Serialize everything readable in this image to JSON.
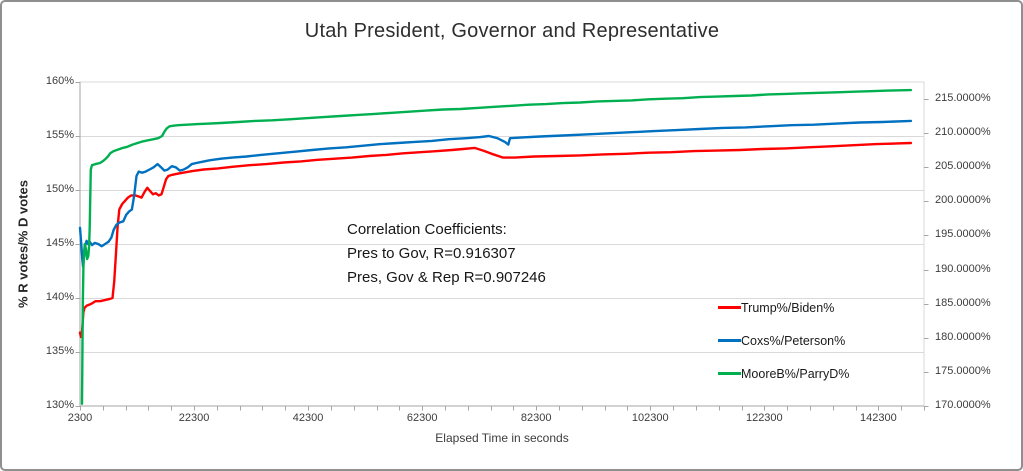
{
  "chart_data": {
    "type": "line",
    "title": "Utah President, Governor and Representative",
    "xlabel": "Elapsed Time in seconds",
    "ylabel_left": "% R votes/% D votes",
    "grid": "horizontal",
    "legend_position": "right-lower",
    "colors": {
      "red_series": "#FF0000",
      "blue_series": "#0070C0",
      "green_series": "#00B050",
      "gridline": "#D9D9D9",
      "axis": "#A6A6A6",
      "frame": "#8f8f8f"
    },
    "x_axis": {
      "min": 2300,
      "max": 150300,
      "minor_step": 4000,
      "major_ticks": [
        2300,
        22300,
        42300,
        62300,
        82300,
        102300,
        122300,
        142300
      ],
      "major_labels": [
        "2300",
        "22300",
        "42300",
        "62300",
        "82300",
        "102300",
        "122300",
        "142300"
      ]
    },
    "y_left": {
      "min": 130,
      "max": 160,
      "step": 5,
      "labels_top_to_bottom": [
        "160%",
        "155%",
        "150%",
        "145%",
        "140%",
        "135%",
        "130%"
      ]
    },
    "y_right": {
      "min": 170,
      "max": 217.5,
      "step": 5,
      "top_label_value": 215,
      "labels_top_to_bottom": [
        "215.0000%",
        "210.0000%",
        "205.0000%",
        "200.0000%",
        "195.0000%",
        "190.0000%",
        "185.0000%",
        "180.0000%",
        "175.0000%",
        "170.0000%"
      ]
    },
    "annotation": {
      "line1": "Correlation  Coefficients:",
      "line2": "Pres to Gov, R=0.916307",
      "line3": "Pres, Gov & Rep R=0.907246"
    },
    "legend": [
      {
        "name": "Trump%/Biden%",
        "color": "#FF0000"
      },
      {
        "name": "Coxs%/Peterson%",
        "color": "#0070C0"
      },
      {
        "name": "MooreB%/ParryD%",
        "color": "#00B050"
      }
    ],
    "series": [
      {
        "name": "Trump%/Biden%",
        "slug": "trump-biden",
        "color": "#FF0000",
        "points": [
          [
            2300,
            136.8
          ],
          [
            2450,
            136.4
          ],
          [
            2600,
            136.5
          ],
          [
            2750,
            137.6
          ],
          [
            2900,
            138.7
          ],
          [
            3100,
            139.1
          ],
          [
            3500,
            139.3
          ],
          [
            4000,
            139.4
          ],
          [
            4400,
            139.5
          ],
          [
            5000,
            139.7
          ],
          [
            5800,
            139.7
          ],
          [
            6600,
            139.8
          ],
          [
            7400,
            139.9
          ],
          [
            8000,
            140.0
          ],
          [
            8300,
            141.5
          ],
          [
            8600,
            144.0
          ],
          [
            8900,
            146.6
          ],
          [
            9200,
            148.2
          ],
          [
            9700,
            148.7
          ],
          [
            10200,
            149.0
          ],
          [
            10700,
            149.3
          ],
          [
            11300,
            149.5
          ],
          [
            12000,
            149.5
          ],
          [
            12600,
            149.4
          ],
          [
            13100,
            149.3
          ],
          [
            13600,
            149.8
          ],
          [
            14100,
            150.2
          ],
          [
            14600,
            149.9
          ],
          [
            15100,
            149.6
          ],
          [
            15600,
            149.7
          ],
          [
            16100,
            149.5
          ],
          [
            16600,
            149.6
          ],
          [
            17000,
            150.3
          ],
          [
            17400,
            151.0
          ],
          [
            17800,
            151.3
          ],
          [
            18400,
            151.4
          ],
          [
            19300,
            151.5
          ],
          [
            20400,
            151.6
          ],
          [
            22000,
            151.75
          ],
          [
            24000,
            151.9
          ],
          [
            26500,
            152.0
          ],
          [
            29000,
            152.15
          ],
          [
            32000,
            152.3
          ],
          [
            35000,
            152.4
          ],
          [
            38000,
            152.55
          ],
          [
            41000,
            152.65
          ],
          [
            44000,
            152.8
          ],
          [
            47000,
            152.9
          ],
          [
            50000,
            153.0
          ],
          [
            53000,
            153.15
          ],
          [
            56000,
            153.25
          ],
          [
            59000,
            153.4
          ],
          [
            62000,
            153.5
          ],
          [
            65000,
            153.6
          ],
          [
            67500,
            153.7
          ],
          [
            69500,
            153.8
          ],
          [
            71500,
            153.9
          ],
          [
            73000,
            153.65
          ],
          [
            74500,
            153.35
          ],
          [
            76500,
            153.0
          ],
          [
            78500,
            153.0
          ],
          [
            82000,
            153.1
          ],
          [
            86000,
            153.15
          ],
          [
            90000,
            153.2
          ],
          [
            94000,
            153.3
          ],
          [
            98000,
            153.35
          ],
          [
            102000,
            153.45
          ],
          [
            106000,
            153.5
          ],
          [
            110000,
            153.6
          ],
          [
            114000,
            153.65
          ],
          [
            118000,
            153.7
          ],
          [
            122000,
            153.8
          ],
          [
            126000,
            153.85
          ],
          [
            130000,
            153.95
          ],
          [
            134000,
            154.05
          ],
          [
            138000,
            154.15
          ],
          [
            142000,
            154.25
          ],
          [
            145000,
            154.3
          ],
          [
            148000,
            154.35
          ]
        ]
      },
      {
        "name": "Coxs%/Peterson%",
        "slug": "coxs-peterson",
        "color": "#0070C0",
        "points": [
          [
            2300,
            146.5
          ],
          [
            2500,
            145.2
          ],
          [
            2700,
            143.6
          ],
          [
            2850,
            142.9
          ],
          [
            3050,
            144.1
          ],
          [
            3250,
            144.9
          ],
          [
            3450,
            145.3
          ],
          [
            3700,
            145.0
          ],
          [
            4000,
            145.2
          ],
          [
            4400,
            144.9
          ],
          [
            4900,
            145.1
          ],
          [
            5500,
            145.0
          ],
          [
            6100,
            144.8
          ],
          [
            6700,
            145.0
          ],
          [
            7300,
            145.2
          ],
          [
            7800,
            145.6
          ],
          [
            8200,
            146.3
          ],
          [
            8700,
            146.8
          ],
          [
            9300,
            147.0
          ],
          [
            9900,
            147.1
          ],
          [
            10400,
            147.7
          ],
          [
            10900,
            148.0
          ],
          [
            11400,
            148.2
          ],
          [
            11800,
            149.5
          ],
          [
            12200,
            151.3
          ],
          [
            12600,
            151.7
          ],
          [
            13200,
            151.6
          ],
          [
            13800,
            151.7
          ],
          [
            14500,
            151.9
          ],
          [
            15200,
            152.1
          ],
          [
            15900,
            152.4
          ],
          [
            16500,
            152.1
          ],
          [
            17100,
            151.8
          ],
          [
            17700,
            151.9
          ],
          [
            18400,
            152.2
          ],
          [
            19100,
            152.1
          ],
          [
            19800,
            151.8
          ],
          [
            20500,
            151.9
          ],
          [
            21200,
            152.1
          ],
          [
            21900,
            152.4
          ],
          [
            22700,
            152.5
          ],
          [
            23600,
            152.6
          ],
          [
            25000,
            152.75
          ],
          [
            27000,
            152.9
          ],
          [
            29000,
            153.0
          ],
          [
            31500,
            153.1
          ],
          [
            34000,
            153.25
          ],
          [
            37000,
            153.4
          ],
          [
            40000,
            153.55
          ],
          [
            43000,
            153.7
          ],
          [
            46000,
            153.85
          ],
          [
            49000,
            153.95
          ],
          [
            52000,
            154.1
          ],
          [
            55000,
            154.25
          ],
          [
            58000,
            154.35
          ],
          [
            61000,
            154.45
          ],
          [
            64000,
            154.55
          ],
          [
            67000,
            154.7
          ],
          [
            70000,
            154.8
          ],
          [
            72500,
            154.9
          ],
          [
            74000,
            155.0
          ],
          [
            75500,
            154.8
          ],
          [
            76800,
            154.45
          ],
          [
            77400,
            154.2
          ],
          [
            77700,
            154.8
          ],
          [
            79500,
            154.85
          ],
          [
            83000,
            154.95
          ],
          [
            87000,
            155.05
          ],
          [
            91000,
            155.15
          ],
          [
            95000,
            155.25
          ],
          [
            99000,
            155.35
          ],
          [
            103000,
            155.45
          ],
          [
            107000,
            155.55
          ],
          [
            111000,
            155.65
          ],
          [
            115000,
            155.75
          ],
          [
            119000,
            155.8
          ],
          [
            123000,
            155.9
          ],
          [
            127000,
            156.0
          ],
          [
            131000,
            156.05
          ],
          [
            135000,
            156.15
          ],
          [
            139000,
            156.25
          ],
          [
            143000,
            156.3
          ],
          [
            148000,
            156.4
          ]
        ]
      },
      {
        "name": "MooreB%/ParryD%",
        "slug": "mooreb-parryd",
        "color": "#00B050",
        "points": [
          [
            2650,
            130.2
          ],
          [
            2700,
            133.5
          ],
          [
            2750,
            137.0
          ],
          [
            2800,
            140.0
          ],
          [
            2900,
            142.8
          ],
          [
            3000,
            144.2
          ],
          [
            3150,
            145.0
          ],
          [
            3350,
            144.5
          ],
          [
            3550,
            143.6
          ],
          [
            3750,
            143.9
          ],
          [
            3900,
            144.8
          ],
          [
            4000,
            146.5
          ],
          [
            4100,
            149.5
          ],
          [
            4200,
            151.9
          ],
          [
            4400,
            152.3
          ],
          [
            5000,
            152.4
          ],
          [
            5800,
            152.5
          ],
          [
            6400,
            152.7
          ],
          [
            6800,
            152.9
          ],
          [
            7200,
            153.1
          ],
          [
            7600,
            153.4
          ],
          [
            8200,
            153.6
          ],
          [
            9000,
            153.75
          ],
          [
            9800,
            153.9
          ],
          [
            10600,
            154.0
          ],
          [
            11500,
            154.2
          ],
          [
            12400,
            154.35
          ],
          [
            13300,
            154.5
          ],
          [
            14200,
            154.6
          ],
          [
            15200,
            154.7
          ],
          [
            16000,
            154.8
          ],
          [
            16700,
            155.0
          ],
          [
            17100,
            155.4
          ],
          [
            17500,
            155.7
          ],
          [
            18000,
            155.9
          ],
          [
            18700,
            155.95
          ],
          [
            19500,
            156.0
          ],
          [
            21000,
            156.05
          ],
          [
            23000,
            156.1
          ],
          [
            25000,
            156.15
          ],
          [
            27000,
            156.2
          ],
          [
            30000,
            156.3
          ],
          [
            33000,
            156.4
          ],
          [
            36000,
            156.45
          ],
          [
            39000,
            156.55
          ],
          [
            42000,
            156.65
          ],
          [
            45000,
            156.75
          ],
          [
            48000,
            156.85
          ],
          [
            51000,
            156.95
          ],
          [
            54000,
            157.05
          ],
          [
            57000,
            157.15
          ],
          [
            60000,
            157.25
          ],
          [
            63000,
            157.35
          ],
          [
            66000,
            157.45
          ],
          [
            69000,
            157.5
          ],
          [
            72000,
            157.6
          ],
          [
            75000,
            157.7
          ],
          [
            78000,
            157.8
          ],
          [
            81000,
            157.9
          ],
          [
            84000,
            157.95
          ],
          [
            87000,
            158.05
          ],
          [
            90000,
            158.1
          ],
          [
            93000,
            158.2
          ],
          [
            96000,
            158.25
          ],
          [
            99000,
            158.3
          ],
          [
            102000,
            158.4
          ],
          [
            105000,
            158.45
          ],
          [
            108000,
            158.5
          ],
          [
            111000,
            158.6
          ],
          [
            114000,
            158.65
          ],
          [
            117000,
            158.7
          ],
          [
            120000,
            158.75
          ],
          [
            123000,
            158.85
          ],
          [
            126000,
            158.9
          ],
          [
            129000,
            158.95
          ],
          [
            132000,
            159.0
          ],
          [
            135000,
            159.05
          ],
          [
            138000,
            159.1
          ],
          [
            141000,
            159.15
          ],
          [
            144000,
            159.2
          ],
          [
            148000,
            159.25
          ]
        ]
      }
    ]
  }
}
